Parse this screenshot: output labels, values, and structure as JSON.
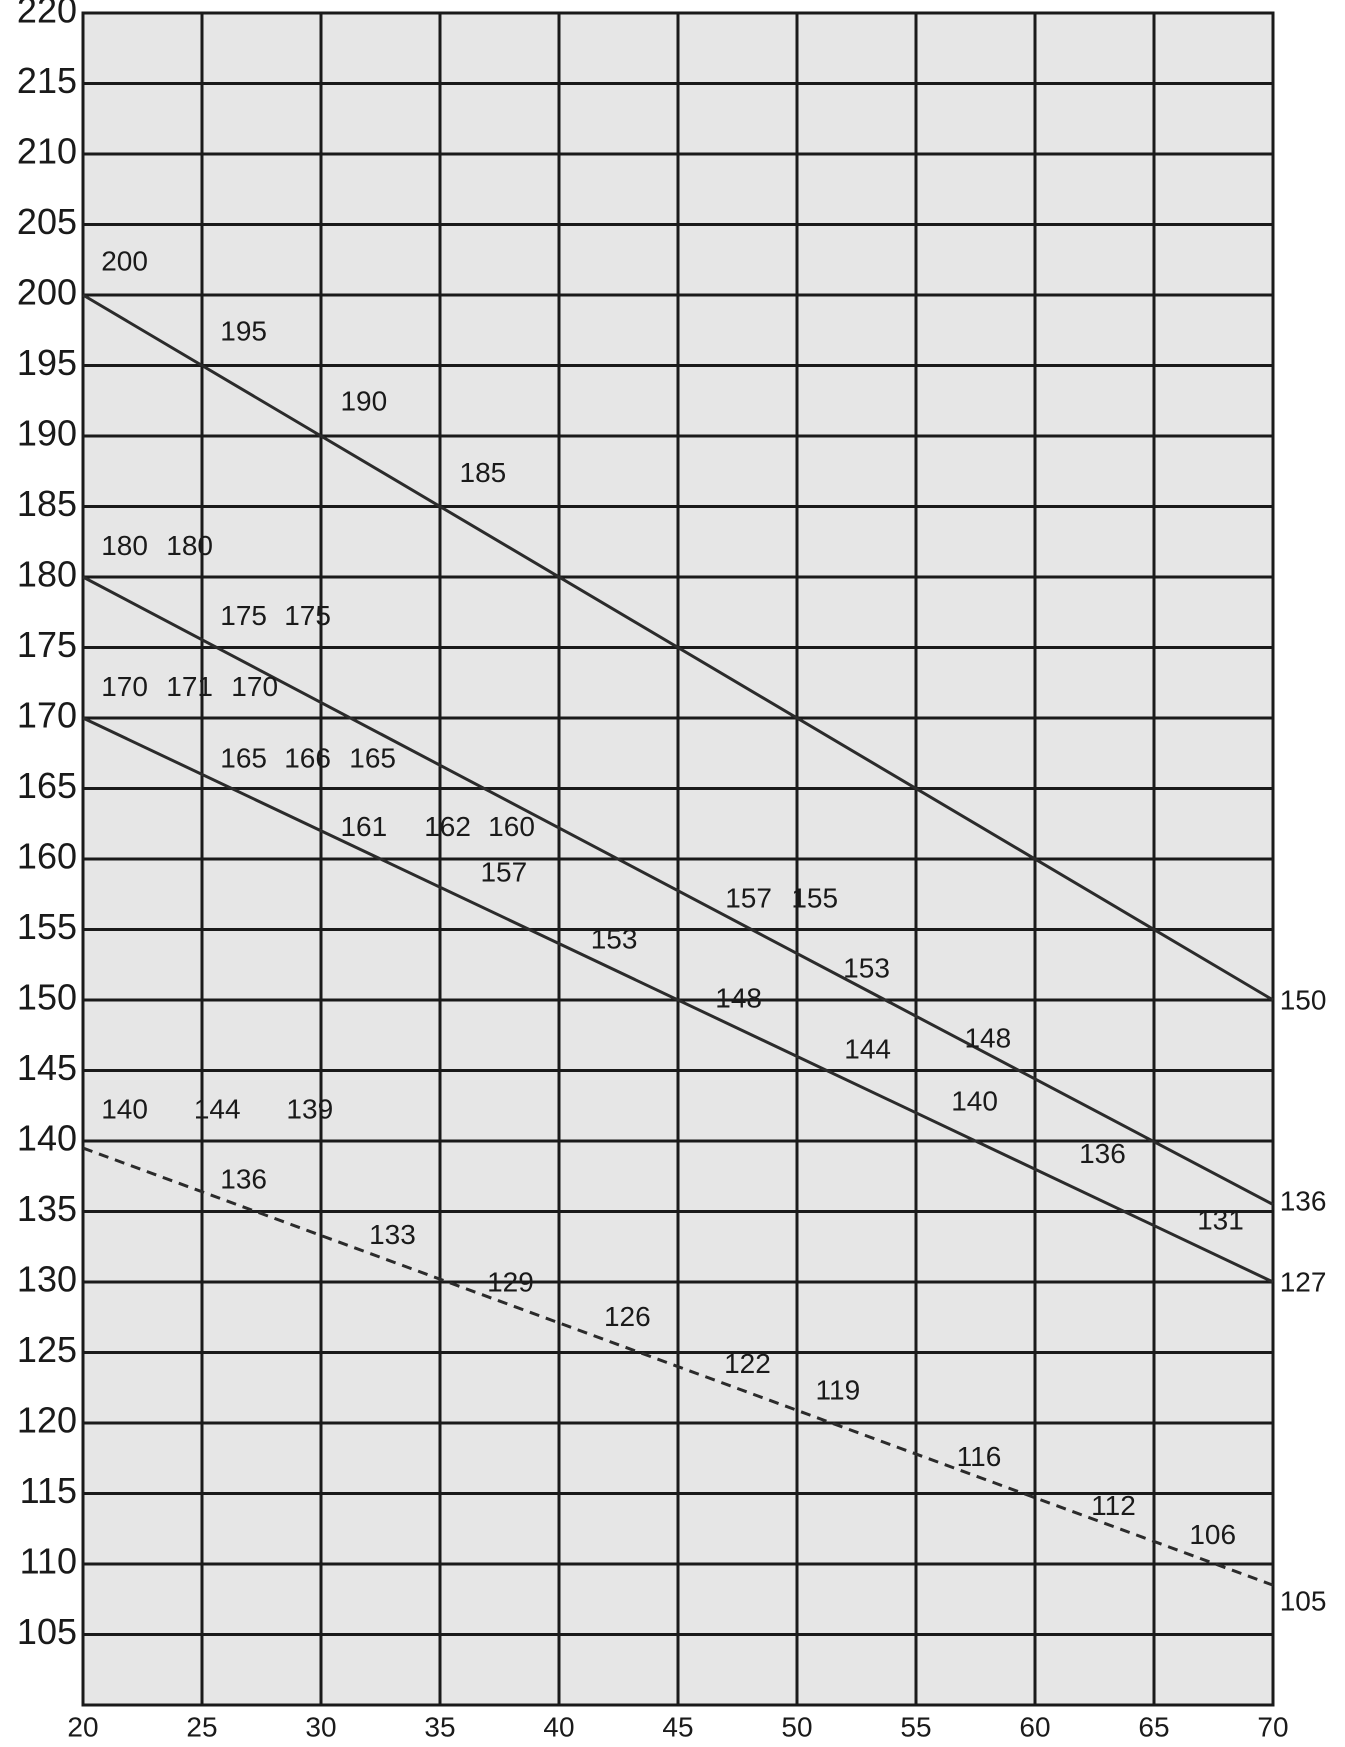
{
  "chart_data": {
    "type": "line",
    "x": [
      20,
      70
    ],
    "series": [
      {
        "color": "#2b2b2b",
        "dashed": false,
        "values": [
          200,
          150
        ]
      },
      {
        "color": "#2b2b2b",
        "dashed": false,
        "values": [
          180,
          135.5
        ]
      },
      {
        "color": "#2b2b2b",
        "dashed": false,
        "values": [
          170,
          130
        ]
      },
      {
        "color": "#2b2b2b",
        "dashed": true,
        "values": [
          139.5,
          108.5
        ]
      }
    ],
    "xlim": [
      20,
      70
    ],
    "xticks": [
      20,
      25,
      30,
      35,
      40,
      45,
      50,
      55,
      60,
      65,
      70
    ],
    "ylim": [
      100,
      220
    ],
    "yticks": [
      105,
      110,
      115,
      120,
      125,
      130,
      135,
      140,
      145,
      150,
      155,
      160,
      165,
      170,
      175,
      180,
      185,
      190,
      195,
      200,
      205,
      210,
      215,
      220
    ],
    "grid": true,
    "background": "#e6e6e6",
    "grid_color": "#1a1a1a",
    "annotations": [
      200,
      195,
      190,
      185,
      180,
      180,
      175,
      175,
      170,
      171,
      170,
      165,
      166,
      165,
      161,
      162,
      160,
      157,
      153,
      157,
      155,
      148,
      153,
      144,
      148,
      140,
      136,
      131,
      140,
      144,
      139,
      136,
      133,
      129,
      126,
      122,
      119,
      116,
      112,
      106,
      150,
      136,
      127,
      105
    ]
  }
}
